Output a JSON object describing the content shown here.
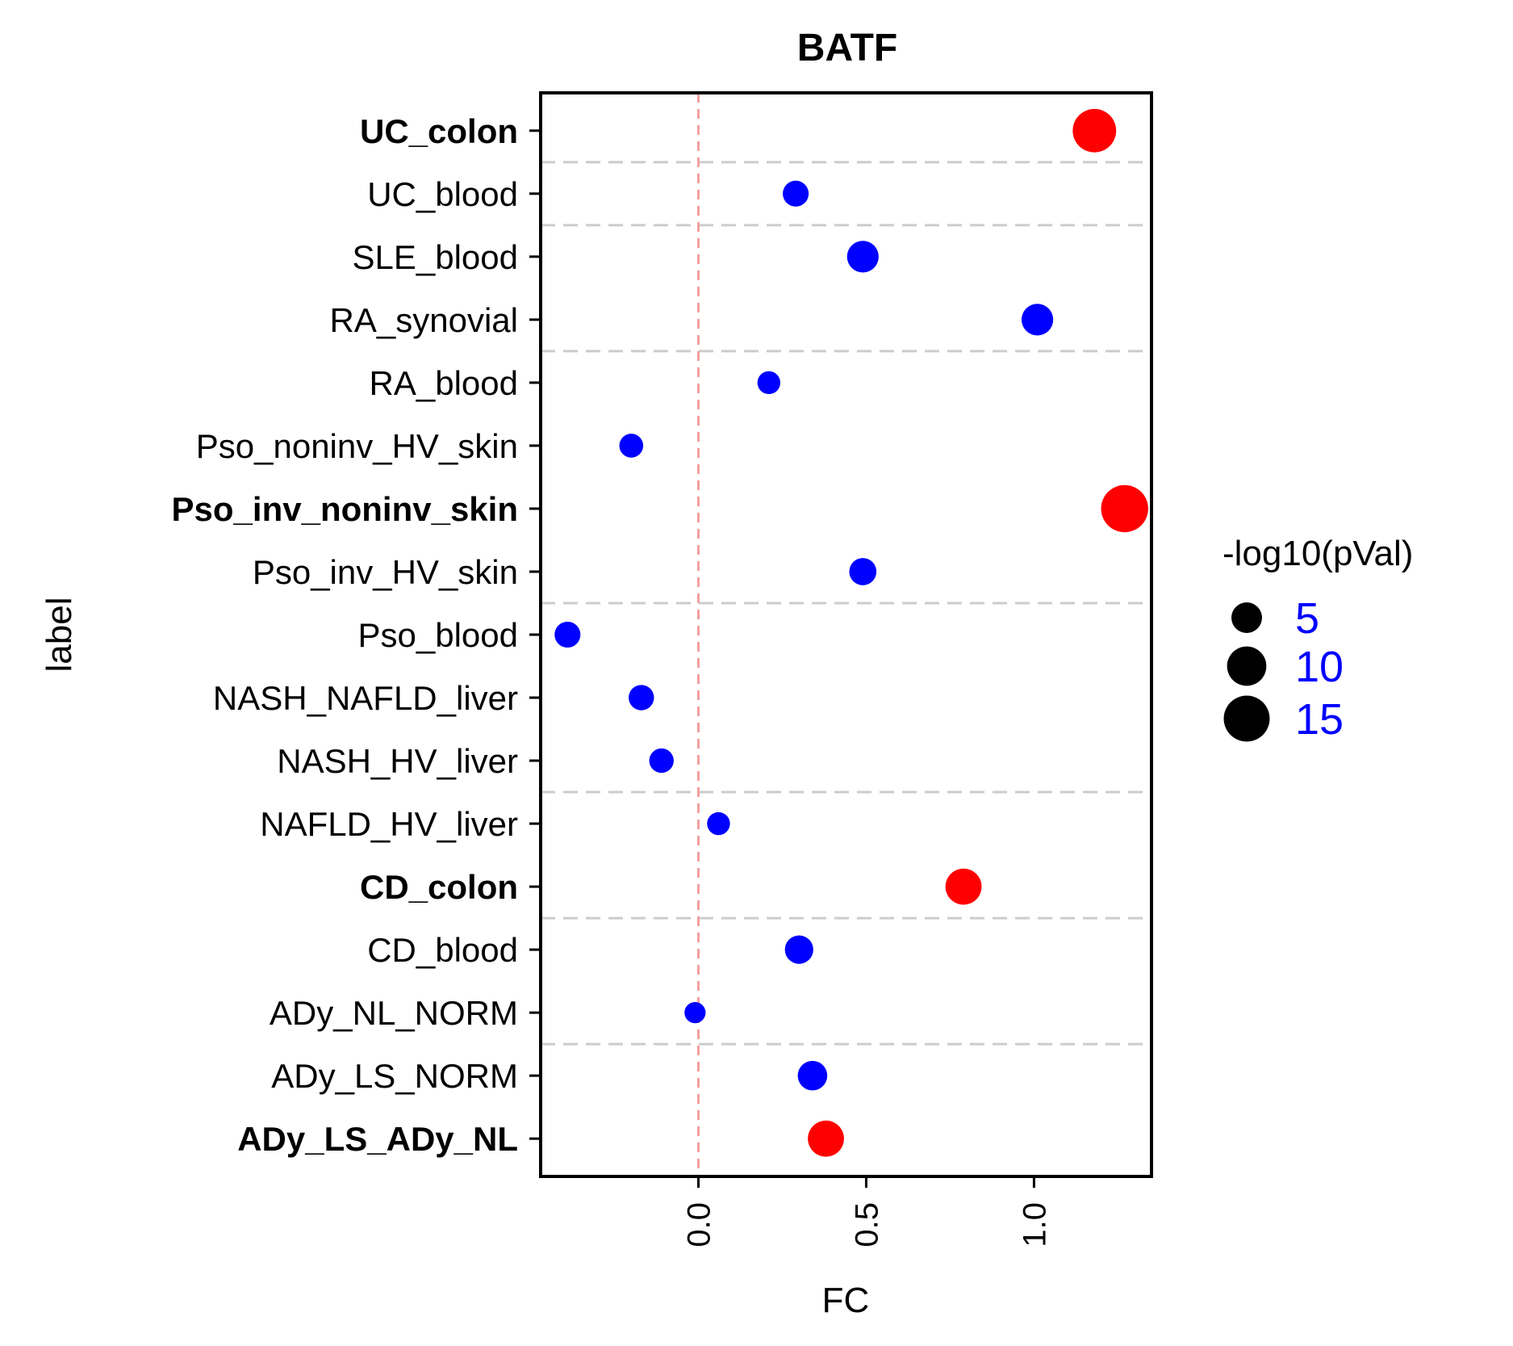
{
  "chart_data": {
    "type": "scatter",
    "title": "BATF",
    "xlabel": "FC",
    "ylabel": "label",
    "xlim": [
      -0.47,
      1.35
    ],
    "x_ticks": [
      "0.0",
      "0.5",
      "1.0"
    ],
    "x_tick_values": [
      0.0,
      0.5,
      1.0
    ],
    "reference_line_x": 0,
    "legend": {
      "title": "-log10(pVal)",
      "placement": "right",
      "entries": [
        {
          "label": "5",
          "value": 5
        },
        {
          "label": "10",
          "value": 10
        },
        {
          "label": "15",
          "value": 15
        }
      ]
    },
    "colors": {
      "significant": "#ff0000",
      "nonsignificant": "#0000ff"
    },
    "group_separators_after": [
      "ADy_LS_NORM",
      "CD_blood",
      "NAFLD_HV_liver",
      "Pso_blood",
      "RA_blood",
      "SLE_blood",
      "UC_blood"
    ],
    "points": [
      {
        "label": "UC_colon",
        "fc": 1.18,
        "neglog10p": 13,
        "significant": true
      },
      {
        "label": "UC_blood",
        "fc": 0.29,
        "neglog10p": 3,
        "significant": false
      },
      {
        "label": "SLE_blood",
        "fc": 0.49,
        "neglog10p": 5.5,
        "significant": false
      },
      {
        "label": "RA_synovial",
        "fc": 1.01,
        "neglog10p": 5.5,
        "significant": false
      },
      {
        "label": "RA_blood",
        "fc": 0.21,
        "neglog10p": 2,
        "significant": false
      },
      {
        "label": "Pso_noninv_HV_skin",
        "fc": -0.2,
        "neglog10p": 2.3,
        "significant": false
      },
      {
        "label": "Pso_inv_noninv_skin",
        "fc": 1.27,
        "neglog10p": 16,
        "significant": true
      },
      {
        "label": "Pso_inv_HV_skin",
        "fc": 0.49,
        "neglog10p": 3.5,
        "significant": false
      },
      {
        "label": "Pso_blood",
        "fc": -0.39,
        "neglog10p": 3,
        "significant": false
      },
      {
        "label": "NASH_NAFLD_liver",
        "fc": -0.17,
        "neglog10p": 2.8,
        "significant": false
      },
      {
        "label": "NASH_HV_liver",
        "fc": -0.11,
        "neglog10p": 2.5,
        "significant": false
      },
      {
        "label": "NAFLD_HV_liver",
        "fc": 0.06,
        "neglog10p": 2,
        "significant": false
      },
      {
        "label": "CD_colon",
        "fc": 0.79,
        "neglog10p": 8,
        "significant": true
      },
      {
        "label": "CD_blood",
        "fc": 0.3,
        "neglog10p": 4,
        "significant": false
      },
      {
        "label": "ADy_NL_NORM",
        "fc": -0.01,
        "neglog10p": 1.5,
        "significant": false
      },
      {
        "label": "ADy_LS_NORM",
        "fc": 0.34,
        "neglog10p": 4.5,
        "significant": false
      },
      {
        "label": "ADy_LS_ADy_NL",
        "fc": 0.38,
        "neglog10p": 8,
        "significant": true
      }
    ]
  }
}
